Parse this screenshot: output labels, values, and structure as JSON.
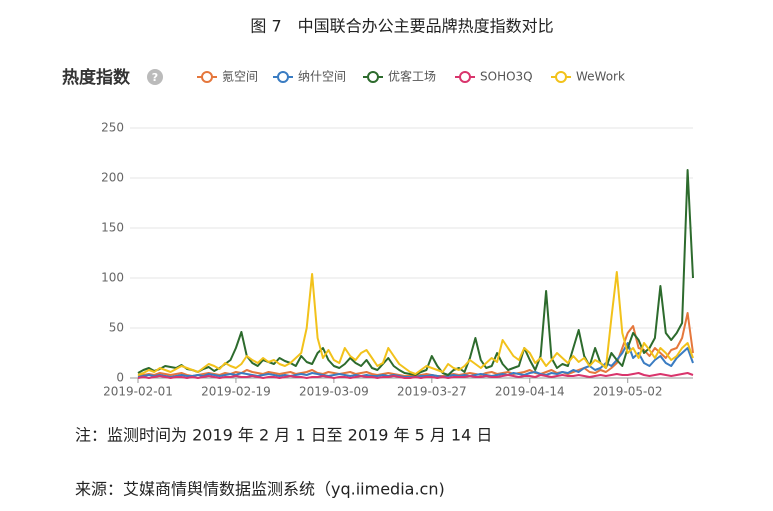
{
  "chart_data": {
    "type": "line",
    "title": "图 7　中国联合办公主要品牌热度指数对比",
    "subtitle": "热度指数",
    "note": "注：监测时间为 2019 年 2 月 1 日至 2019 年 5 月 14 日",
    "source": "来源：艾媒商情舆情数据监测系统（yq.iimedia.cn)",
    "categories": [
      "2019-02-01",
      null,
      null,
      null,
      null,
      null,
      null,
      null,
      null,
      null,
      null,
      null,
      null,
      null,
      null,
      null,
      null,
      null,
      "2019-02-19",
      null,
      null,
      null,
      null,
      null,
      null,
      null,
      null,
      null,
      null,
      null,
      null,
      null,
      null,
      null,
      null,
      null,
      "2019-03-09",
      null,
      null,
      null,
      null,
      null,
      null,
      null,
      null,
      null,
      null,
      null,
      null,
      null,
      null,
      null,
      null,
      null,
      "2019-03-27",
      null,
      null,
      null,
      null,
      null,
      null,
      null,
      null,
      null,
      null,
      null,
      null,
      null,
      null,
      null,
      null,
      null,
      "2019-04-14",
      null,
      null,
      null,
      null,
      null,
      null,
      null,
      null,
      null,
      null,
      null,
      null,
      null,
      null,
      null,
      null,
      null,
      "2019-05-02",
      null,
      null,
      null,
      null,
      null,
      null,
      null,
      null,
      null,
      null,
      null,
      null
    ],
    "ylim": [
      0,
      250
    ],
    "yticks": [
      0,
      50,
      100,
      150,
      200,
      250
    ],
    "grid": true,
    "series": [
      {
        "name": "氪空间",
        "color": "#e5773c",
        "values": [
          2,
          3,
          4,
          3,
          5,
          4,
          3,
          4,
          5,
          3,
          2,
          3,
          4,
          5,
          4,
          3,
          5,
          4,
          6,
          5,
          8,
          6,
          5,
          4,
          6,
          5,
          4,
          5,
          6,
          4,
          5,
          6,
          8,
          5,
          4,
          6,
          5,
          4,
          5,
          6,
          4,
          5,
          6,
          4,
          3,
          4,
          5,
          4,
          3,
          2,
          2,
          2,
          3,
          4,
          3,
          2,
          2,
          3,
          4,
          3,
          4,
          5,
          4,
          3,
          5,
          6,
          4,
          5,
          6,
          4,
          5,
          6,
          8,
          5,
          4,
          6,
          8,
          5,
          6,
          4,
          6,
          8,
          10,
          6,
          5,
          8,
          6,
          10,
          15,
          30,
          45,
          52,
          30,
          28,
          22,
          30,
          25,
          20,
          28,
          30,
          40,
          65,
          25
        ]
      },
      {
        "name": "纳什空间",
        "color": "#3a7cc2",
        "values": [
          1,
          2,
          3,
          2,
          3,
          2,
          1,
          2,
          3,
          2,
          2,
          3,
          2,
          4,
          3,
          2,
          3,
          4,
          3,
          5,
          4,
          3,
          2,
          3,
          4,
          3,
          2,
          3,
          2,
          3,
          4,
          3,
          5,
          4,
          3,
          2,
          3,
          4,
          3,
          2,
          3,
          2,
          3,
          2,
          2,
          3,
          2,
          3,
          2,
          1,
          1,
          1,
          2,
          2,
          3,
          2,
          1,
          2,
          3,
          2,
          3,
          2,
          3,
          4,
          3,
          2,
          3,
          4,
          3,
          5,
          4,
          3,
          5,
          6,
          4,
          3,
          5,
          4,
          6,
          5,
          8,
          6,
          10,
          12,
          8,
          10,
          15,
          12,
          18,
          25,
          35,
          20,
          25,
          15,
          12,
          18,
          22,
          15,
          12,
          20,
          25,
          30,
          15
        ]
      },
      {
        "name": "优客工场",
        "color": "#2d6b2d",
        "values": [
          5,
          8,
          10,
          7,
          9,
          12,
          11,
          10,
          13,
          9,
          8,
          6,
          9,
          11,
          7,
          10,
          14,
          18,
          30,
          46,
          22,
          15,
          12,
          18,
          16,
          14,
          20,
          17,
          15,
          12,
          22,
          16,
          14,
          25,
          30,
          18,
          12,
          10,
          14,
          20,
          15,
          12,
          18,
          10,
          8,
          14,
          20,
          12,
          8,
          5,
          4,
          3,
          6,
          8,
          22,
          12,
          5,
          3,
          8,
          10,
          6,
          20,
          40,
          18,
          10,
          12,
          25,
          14,
          8,
          10,
          12,
          30,
          18,
          8,
          22,
          87,
          20,
          10,
          14,
          12,
          30,
          48,
          22,
          12,
          30,
          15,
          10,
          25,
          18,
          12,
          30,
          45,
          38,
          25,
          30,
          40,
          92,
          45,
          38,
          45,
          55,
          208,
          100
        ]
      },
      {
        "name": "SOHO3Q",
        "color": "#d9346c",
        "values": [
          0,
          1,
          0,
          1,
          2,
          1,
          0,
          1,
          1,
          0,
          1,
          0,
          1,
          2,
          1,
          0,
          1,
          1,
          2,
          1,
          1,
          2,
          1,
          0,
          1,
          1,
          0,
          1,
          2,
          1,
          1,
          0,
          1,
          1,
          2,
          1,
          0,
          1,
          1,
          0,
          1,
          2,
          1,
          1,
          0,
          1,
          1,
          2,
          1,
          0,
          0,
          1,
          0,
          1,
          1,
          0,
          1,
          0,
          1,
          1,
          1,
          2,
          1,
          1,
          2,
          1,
          1,
          2,
          3,
          2,
          1,
          2,
          2,
          1,
          3,
          2,
          1,
          2,
          3,
          2,
          2,
          3,
          2,
          1,
          2,
          3,
          2,
          3,
          4,
          3,
          3,
          4,
          5,
          3,
          2,
          3,
          4,
          3,
          2,
          3,
          4,
          5,
          3
        ]
      },
      {
        "name": "WeWork",
        "color": "#f2c21b",
        "values": [
          3,
          5,
          8,
          6,
          10,
          8,
          6,
          9,
          12,
          10,
          8,
          6,
          10,
          14,
          12,
          9,
          15,
          12,
          10,
          14,
          22,
          18,
          15,
          20,
          16,
          18,
          14,
          12,
          15,
          20,
          25,
          50,
          104,
          40,
          20,
          28,
          18,
          15,
          30,
          22,
          18,
          25,
          28,
          20,
          12,
          15,
          30,
          22,
          14,
          10,
          6,
          4,
          8,
          12,
          10,
          8,
          6,
          14,
          10,
          8,
          12,
          18,
          14,
          10,
          15,
          20,
          16,
          38,
          30,
          22,
          18,
          30,
          25,
          15,
          20,
          12,
          18,
          25,
          20,
          15,
          22,
          16,
          20,
          12,
          18,
          15,
          10,
          60,
          106,
          45,
          25,
          30,
          20,
          35,
          28,
          20,
          30,
          25,
          18,
          22,
          30,
          35,
          20
        ]
      }
    ]
  }
}
